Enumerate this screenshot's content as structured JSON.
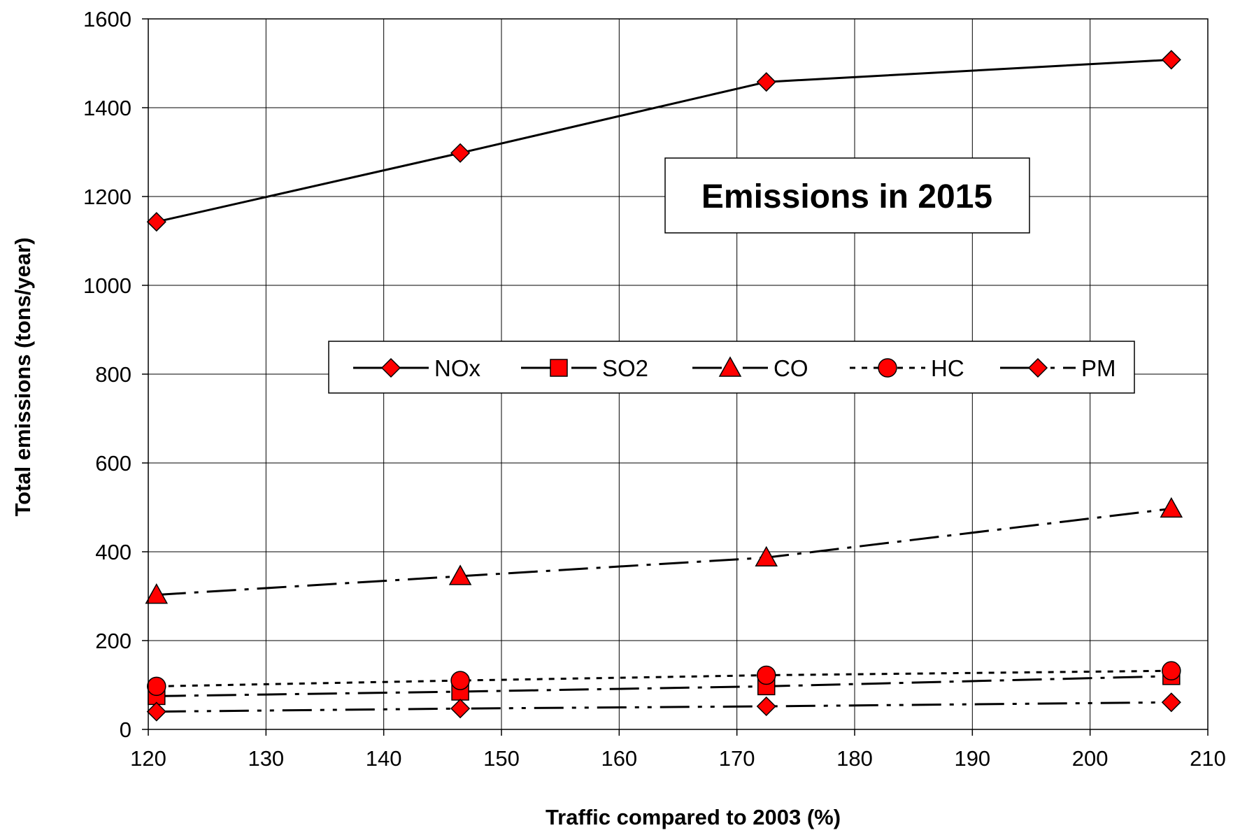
{
  "chart_data": {
    "type": "line",
    "title": "Emissions in 2015",
    "xlabel": "Traffic compared to 2003 (%)",
    "ylabel": "Total emissions (tons/year)",
    "xlim": [
      120,
      210
    ],
    "ylim": [
      0,
      1600
    ],
    "x_ticks": [
      "120",
      "130",
      "140",
      "150",
      "160",
      "170",
      "180",
      "190",
      "200",
      "210"
    ],
    "y_ticks": [
      "0",
      "200",
      "400",
      "600",
      "800",
      "1000",
      "1200",
      "1400",
      "1600"
    ],
    "grid": true,
    "legend_position": "center",
    "x": [
      120.7,
      146.5,
      172.5,
      206.9
    ],
    "series": [
      {
        "name": "NOx",
        "values": [
          1143,
          1298,
          1458,
          1508
        ],
        "marker": "diamond",
        "dash": "solid"
      },
      {
        "name": "SO2",
        "values": [
          75,
          85,
          97,
          120
        ],
        "marker": "square",
        "dash": "long-dash-dot"
      },
      {
        "name": "CO",
        "values": [
          303,
          345,
          387,
          497
        ],
        "marker": "triangle",
        "dash": "long-dash-dot"
      },
      {
        "name": "HC",
        "values": [
          97,
          110,
          122,
          132
        ],
        "marker": "circle",
        "dash": "short-dash"
      },
      {
        "name": "PM",
        "values": [
          40,
          47,
          52,
          61
        ],
        "marker": "diamond",
        "dash": "long-dash-dot-dot"
      }
    ],
    "colors": {
      "marker_fill": "#ff0000",
      "line": "#000000",
      "grid": "#000000"
    }
  }
}
